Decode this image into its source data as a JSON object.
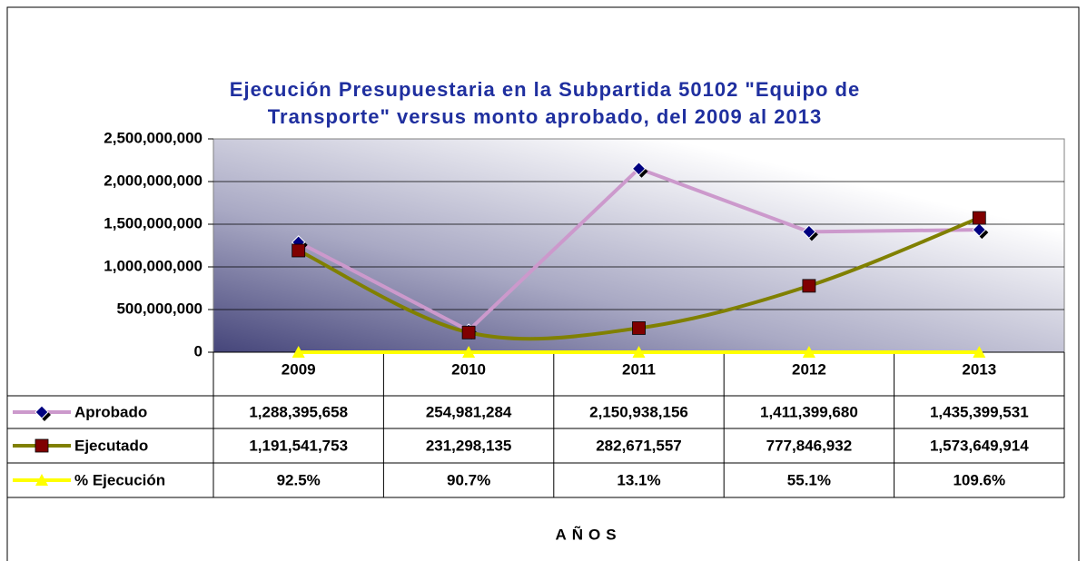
{
  "chart_data": {
    "type": "line",
    "title": [
      "Ejecución Presupuestaria en la Subpartida 50102 \"Equipo de",
      "Transporte\" versus monto aprobado, del  2009 al 2013"
    ],
    "x_label": "AÑOS",
    "categories": [
      "2009",
      "2010",
      "2011",
      "2012",
      "2013"
    ],
    "series": [
      {
        "name": "Aprobado",
        "color": "#cc99cc",
        "marker": "diamond",
        "marker_color": "#000080",
        "smooth": false,
        "values": [
          1288395658,
          254981284,
          2150938156,
          1411399680,
          1435399531
        ],
        "value_labels": [
          "1,288,395,658",
          "254,981,284",
          "2,150,938,156",
          "1,411,399,680",
          "1,435,399,531"
        ]
      },
      {
        "name": "Ejecutado",
        "color": "#808000",
        "marker": "square",
        "marker_color": "#800000",
        "smooth": true,
        "values": [
          1191541753,
          231298135,
          282671557,
          777846932,
          1573649914
        ],
        "value_labels": [
          "1,191,541,753",
          "231,298,135",
          "282,671,557",
          "777,846,932",
          "1,573,649,914"
        ]
      },
      {
        "name": "% Ejecución",
        "color": "#ffff00",
        "marker": "triangle",
        "marker_color": "#ffff00",
        "smooth": false,
        "values": [
          92.5,
          90.7,
          13.1,
          55.1,
          109.6
        ],
        "value_labels": [
          "92.5%",
          "90.7%",
          "13.1%",
          "55.1%",
          "109.6%"
        ]
      }
    ],
    "ylim": [
      0,
      2500000000
    ],
    "yticks": [
      0,
      {
        "value": 500000000,
        "label": "500,000,000"
      },
      {
        "value": 1000000000,
        "label": "1,000,000,000"
      },
      {
        "value": 1500000000,
        "label": "1,500,000,000"
      },
      {
        "value": 2000000000,
        "label": "2,000,000,000"
      },
      {
        "value": 2500000000,
        "label": "2,500,000,000"
      }
    ],
    "grid": true
  }
}
